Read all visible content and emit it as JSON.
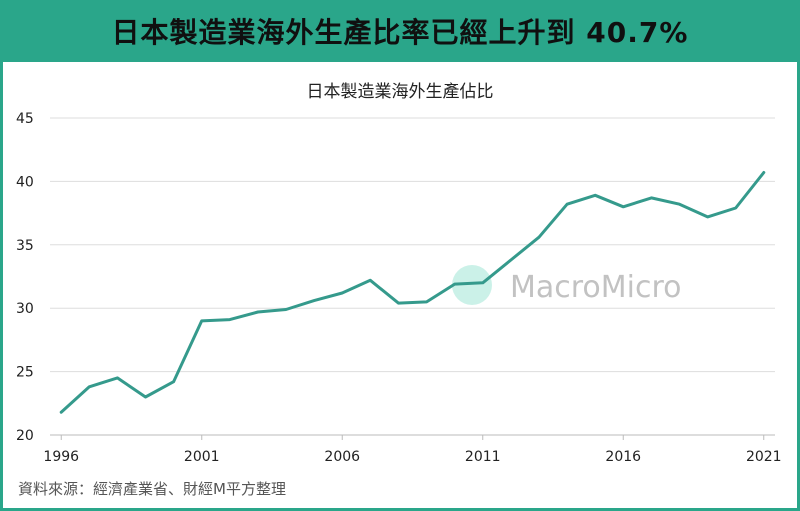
{
  "header": {
    "title": "日本製造業海外生產比率已經上升到 40.7%"
  },
  "source": "資料來源：經濟產業省、財經M平方整理",
  "watermark": {
    "text": "MacroMicro"
  },
  "colors": {
    "accent": "#2aa68a",
    "line": "#359a8c",
    "grid": "#dddddd"
  },
  "chart_data": {
    "type": "line",
    "title": "日本製造業海外生產佔比",
    "xlabel": "",
    "ylabel": "",
    "x": [
      1996,
      1997,
      1998,
      1999,
      2000,
      2001,
      2002,
      2003,
      2004,
      2005,
      2006,
      2007,
      2008,
      2009,
      2010,
      2011,
      2012,
      2013,
      2014,
      2015,
      2016,
      2017,
      2018,
      2019,
      2020,
      2021
    ],
    "xticks": [
      "1996",
      "2001",
      "2006",
      "2011",
      "2016",
      "2021"
    ],
    "xtick_values": [
      1996,
      2001,
      2006,
      2011,
      2016,
      2021
    ],
    "yticks": [
      "20",
      "25",
      "30",
      "35",
      "40",
      "45"
    ],
    "ytick_values": [
      20,
      25,
      30,
      35,
      40,
      45
    ],
    "ylim": [
      20,
      45
    ],
    "xlim": [
      1995.6,
      2021.4
    ],
    "series": [
      {
        "name": "日本製造業海外生產佔比",
        "values": [
          21.8,
          23.8,
          24.5,
          23.0,
          24.2,
          29.0,
          29.1,
          29.7,
          29.9,
          30.6,
          31.2,
          32.2,
          30.4,
          30.5,
          31.9,
          32.0,
          33.8,
          35.6,
          38.2,
          38.9,
          38.0,
          38.7,
          38.2,
          37.2,
          37.9,
          40.7
        ]
      }
    ],
    "grid": true,
    "legend": "none"
  }
}
